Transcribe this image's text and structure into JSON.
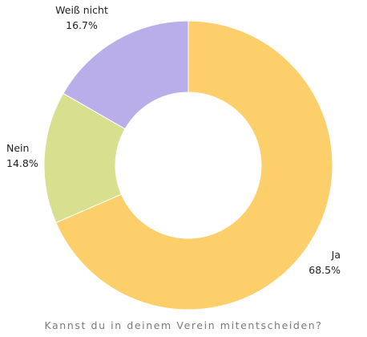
{
  "chart_data": {
    "type": "pie",
    "donut": true,
    "caption": "Kannst du in deinem Verein mitentscheiden?",
    "slices": [
      {
        "label": "Ja",
        "value": 68.5,
        "value_label": "68.5%",
        "color": "#fccf6b"
      },
      {
        "label": "Nein",
        "value": 14.8,
        "value_label": "14.8%",
        "color": "#d8df8f"
      },
      {
        "label": "Weiß nicht",
        "value": 16.7,
        "value_label": "16.7%",
        "color": "#b9aeea"
      }
    ],
    "start": "top",
    "direction": "clockwise"
  }
}
